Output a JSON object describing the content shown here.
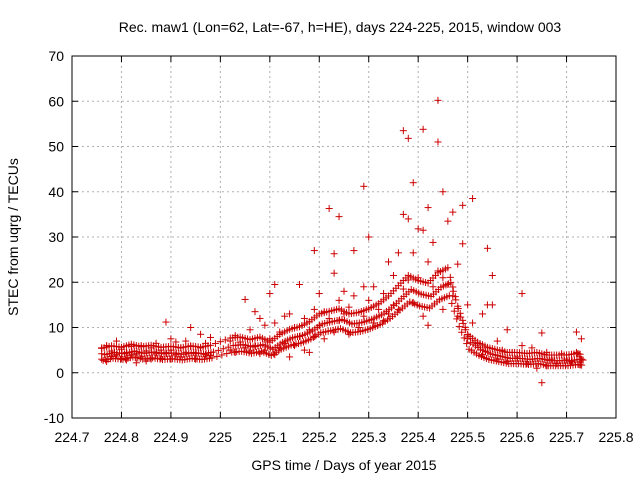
{
  "chart_data": {
    "type": "scatter",
    "title": "Rec. maw1 (Lon=62, Lat=-67, h=HE), days 224-225, 2015, window 003",
    "xlabel": "GPS time / Days of year 2015",
    "ylabel": "STEC from uqrg / TECUs",
    "xlim": [
      224.7,
      225.8
    ],
    "ylim": [
      -10,
      70
    ],
    "xticks": [
      "224.7",
      "224.8",
      "224.9",
      "225",
      "225.1",
      "225.2",
      "225.3",
      "225.4",
      "225.5",
      "225.6",
      "225.7",
      "225.8"
    ],
    "yticks": [
      "-10",
      "0",
      "10",
      "20",
      "30",
      "40",
      "50",
      "60",
      "70"
    ],
    "grid": true,
    "marker": "+",
    "marker_color": "#cc0000",
    "points": [
      [
        224.76,
        5.5
      ],
      [
        224.76,
        4.2
      ],
      [
        224.76,
        3.0
      ],
      [
        224.77,
        2.5
      ],
      [
        224.77,
        6.0
      ],
      [
        224.78,
        4.8
      ],
      [
        224.78,
        3.6
      ],
      [
        224.79,
        7.0
      ],
      [
        224.79,
        4.0
      ],
      [
        224.8,
        5.2
      ],
      [
        224.8,
        3.2
      ],
      [
        224.81,
        4.5
      ],
      [
        224.81,
        2.8
      ],
      [
        224.82,
        5.8
      ],
      [
        224.82,
        3.9
      ],
      [
        224.83,
        4.2
      ],
      [
        224.83,
        2.2
      ],
      [
        224.84,
        6.0
      ],
      [
        224.84,
        3.5
      ],
      [
        224.85,
        4.8
      ],
      [
        224.85,
        2.6
      ],
      [
        224.86,
        5.5
      ],
      [
        224.86,
        3.0
      ],
      [
        224.87,
        6.5
      ],
      [
        224.87,
        4.2
      ],
      [
        224.88,
        5.0
      ],
      [
        224.88,
        3.2
      ],
      [
        224.89,
        11.2
      ],
      [
        224.89,
        4.5
      ],
      [
        224.9,
        7.5
      ],
      [
        224.9,
        5.0
      ],
      [
        224.9,
        3.0
      ],
      [
        224.91,
        6.8
      ],
      [
        224.91,
        4.0
      ],
      [
        224.92,
        5.5
      ],
      [
        224.92,
        3.5
      ],
      [
        224.93,
        7.0
      ],
      [
        224.93,
        4.5
      ],
      [
        224.94,
        10.0
      ],
      [
        224.94,
        5.8
      ],
      [
        224.95,
        4.2
      ],
      [
        224.95,
        3.0
      ],
      [
        224.96,
        8.5
      ],
      [
        224.96,
        5.5
      ],
      [
        224.97,
        6.5
      ],
      [
        224.97,
        4.0
      ],
      [
        224.98,
        7.8
      ],
      [
        224.98,
        3.8
      ],
      [
        225.02,
        7.0
      ],
      [
        225.02,
        5.0
      ],
      [
        225.03,
        8.2
      ],
      [
        225.03,
        4.5
      ],
      [
        225.04,
        6.8
      ],
      [
        225.05,
        16.2
      ],
      [
        225.05,
        5.5
      ],
      [
        225.06,
        9.5
      ],
      [
        225.06,
        4.8
      ],
      [
        225.07,
        13.5
      ],
      [
        225.07,
        6.0
      ],
      [
        225.08,
        12.0
      ],
      [
        225.08,
        4.2
      ],
      [
        225.09,
        10.5
      ],
      [
        225.09,
        5.0
      ],
      [
        225.1,
        17.5
      ],
      [
        225.1,
        7.5
      ],
      [
        225.11,
        19.5
      ],
      [
        225.11,
        11.0
      ],
      [
        225.11,
        4.0
      ],
      [
        225.12,
        9.0
      ],
      [
        225.12,
        5.5
      ],
      [
        225.13,
        12.5
      ],
      [
        225.13,
        6.5
      ],
      [
        225.14,
        13.0
      ],
      [
        225.14,
        3.5
      ],
      [
        225.15,
        10.0
      ],
      [
        225.15,
        6.0
      ],
      [
        225.16,
        19.5
      ],
      [
        225.16,
        8.0
      ],
      [
        225.17,
        12.0
      ],
      [
        225.17,
        5.0
      ],
      [
        225.18,
        9.5
      ],
      [
        225.18,
        4.5
      ],
      [
        225.19,
        27.0
      ],
      [
        225.19,
        14.0
      ],
      [
        225.19,
        8.0
      ],
      [
        225.2,
        17.5
      ],
      [
        225.2,
        10.5
      ],
      [
        225.21,
        13.5
      ],
      [
        225.21,
        7.5
      ],
      [
        225.22,
        36.3
      ],
      [
        225.22,
        12.0
      ],
      [
        225.23,
        26.3
      ],
      [
        225.23,
        22.0
      ],
      [
        225.23,
        9.0
      ],
      [
        225.24,
        34.5
      ],
      [
        225.24,
        16.0
      ],
      [
        225.24,
        11.5
      ],
      [
        225.25,
        18.0
      ],
      [
        225.25,
        13.0
      ],
      [
        225.26,
        14.5
      ],
      [
        225.26,
        8.5
      ],
      [
        225.27,
        27.0
      ],
      [
        225.27,
        17.0
      ],
      [
        225.28,
        10.0
      ],
      [
        225.29,
        41.2
      ],
      [
        225.29,
        19.0
      ],
      [
        225.29,
        12.5
      ],
      [
        225.3,
        30.0
      ],
      [
        225.3,
        16.0
      ],
      [
        225.31,
        19.0
      ],
      [
        225.31,
        11.0
      ],
      [
        225.32,
        14.0
      ],
      [
        225.33,
        17.5
      ],
      [
        225.33,
        11.5
      ],
      [
        225.34,
        24.5
      ],
      [
        225.34,
        13.0
      ],
      [
        225.35,
        21.5
      ],
      [
        225.35,
        15.0
      ],
      [
        225.36,
        26.5
      ],
      [
        225.36,
        14.0
      ],
      [
        225.37,
        53.5
      ],
      [
        225.37,
        35.0
      ],
      [
        225.37,
        18.5
      ],
      [
        225.38,
        51.8
      ],
      [
        225.38,
        34.0
      ],
      [
        225.38,
        20.5
      ],
      [
        225.39,
        42.0
      ],
      [
        225.39,
        26.5
      ],
      [
        225.39,
        15.5
      ],
      [
        225.4,
        31.8
      ],
      [
        225.4,
        21.0
      ],
      [
        225.41,
        53.8
      ],
      [
        225.41,
        31.5
      ],
      [
        225.41,
        12.5
      ],
      [
        225.42,
        36.5
      ],
      [
        225.42,
        24.5
      ],
      [
        225.42,
        10.5
      ],
      [
        225.43,
        28.8
      ],
      [
        225.43,
        19.0
      ],
      [
        225.44,
        60.2
      ],
      [
        225.44,
        51.0
      ],
      [
        225.44,
        22.5
      ],
      [
        225.45,
        40.0
      ],
      [
        225.45,
        21.0
      ],
      [
        225.45,
        14.0
      ],
      [
        225.46,
        33.5
      ],
      [
        225.46,
        19.5
      ],
      [
        225.47,
        35.5
      ],
      [
        225.47,
        17.0
      ],
      [
        225.48,
        24.0
      ],
      [
        225.48,
        12.5
      ],
      [
        225.49,
        37.0
      ],
      [
        225.49,
        28.5
      ],
      [
        225.5,
        15.0
      ],
      [
        225.5,
        7.5
      ],
      [
        225.51,
        38.5
      ],
      [
        225.51,
        11.0
      ],
      [
        225.52,
        6.5
      ],
      [
        225.53,
        13.0
      ],
      [
        225.53,
        4.0
      ],
      [
        225.54,
        27.5
      ],
      [
        225.54,
        15.0
      ],
      [
        225.55,
        15.0
      ],
      [
        225.55,
        21.5
      ],
      [
        225.56,
        7.0
      ],
      [
        225.56,
        3.0
      ],
      [
        225.57,
        5.0
      ],
      [
        225.58,
        9.5
      ],
      [
        225.58,
        2.5
      ],
      [
        225.59,
        4.5
      ],
      [
        225.6,
        3.5
      ],
      [
        225.61,
        17.5
      ],
      [
        225.61,
        6.0
      ],
      [
        225.62,
        2.0
      ],
      [
        225.63,
        5.5
      ],
      [
        225.64,
        1.0
      ],
      [
        225.65,
        8.8
      ],
      [
        225.65,
        -2.2
      ],
      [
        225.66,
        4.5
      ],
      [
        225.66,
        1.5
      ],
      [
        225.67,
        3.0
      ],
      [
        225.68,
        2.0
      ],
      [
        225.69,
        4.2
      ],
      [
        225.7,
        3.0
      ],
      [
        225.71,
        2.5
      ],
      [
        225.72,
        9.0
      ],
      [
        225.72,
        4.5
      ],
      [
        225.73,
        7.5
      ],
      [
        225.73,
        3.0
      ]
    ],
    "band_points": [
      [
        224.76,
        3.8
      ],
      [
        224.78,
        4.3
      ],
      [
        224.8,
        4.0
      ],
      [
        224.82,
        4.6
      ],
      [
        224.84,
        4.1
      ],
      [
        224.86,
        4.4
      ],
      [
        224.88,
        4.0
      ],
      [
        224.9,
        4.2
      ],
      [
        224.92,
        3.9
      ],
      [
        224.94,
        4.3
      ],
      [
        224.96,
        4.0
      ],
      [
        224.98,
        4.4
      ],
      [
        225.02,
        5.8
      ],
      [
        225.04,
        6.0
      ],
      [
        225.06,
        5.5
      ],
      [
        225.08,
        6.0
      ],
      [
        225.1,
        5.0
      ],
      [
        225.12,
        6.5
      ],
      [
        225.14,
        7.5
      ],
      [
        225.16,
        8.0
      ],
      [
        225.18,
        9.0
      ],
      [
        225.2,
        10.5
      ],
      [
        225.22,
        11.0
      ],
      [
        225.24,
        11.5
      ],
      [
        225.26,
        10.5
      ],
      [
        225.28,
        10.8
      ],
      [
        225.3,
        11.5
      ],
      [
        225.32,
        12.5
      ],
      [
        225.34,
        14.0
      ],
      [
        225.36,
        16.0
      ],
      [
        225.38,
        18.0
      ],
      [
        225.4,
        17.0
      ],
      [
        225.42,
        16.5
      ],
      [
        225.44,
        18.5
      ],
      [
        225.46,
        19.5
      ],
      [
        225.48,
        12.0
      ],
      [
        225.5,
        6.5
      ],
      [
        225.52,
        5.0
      ],
      [
        225.54,
        4.0
      ],
      [
        225.56,
        3.5
      ],
      [
        225.58,
        3.0
      ],
      [
        225.6,
        3.0
      ],
      [
        225.62,
        2.8
      ],
      [
        225.64,
        3.0
      ],
      [
        225.66,
        2.5
      ],
      [
        225.68,
        2.5
      ],
      [
        225.7,
        2.5
      ],
      [
        225.72,
        2.8
      ],
      [
        225.73,
        2.6
      ]
    ]
  }
}
